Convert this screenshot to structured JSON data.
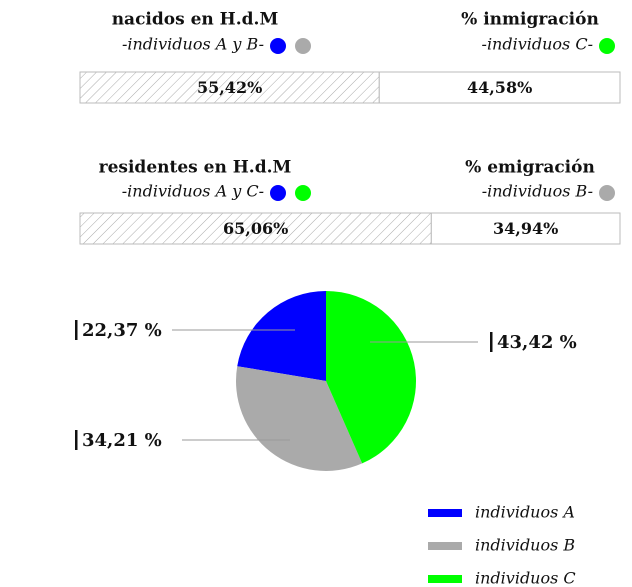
{
  "chart_data": [
    {
      "type": "stacked-bar",
      "xlim": [
        0,
        100
      ],
      "series": [
        {
          "name": "nacidos en H.d.M",
          "subtitle": "-individuos A y B-",
          "dot_colors": [
            "#0000ff",
            "#aaaaaa"
          ],
          "fill": "hatch",
          "values": [
            55.42
          ],
          "value_labels": [
            "55,42%"
          ]
        },
        {
          "name": "% inmigración",
          "subtitle": "-individuos C-",
          "dot_colors": [
            "#00ff00"
          ],
          "fill": "#ffffff",
          "values": [
            44.58
          ],
          "value_labels": [
            "44,58%"
          ]
        }
      ]
    },
    {
      "type": "stacked-bar",
      "xlim": [
        0,
        100
      ],
      "series": [
        {
          "name": "residentes en H.d.M",
          "subtitle": "-individuos A y C-",
          "dot_colors": [
            "#0000ff",
            "#00ff00"
          ],
          "fill": "hatch",
          "values": [
            65.06
          ],
          "value_labels": [
            "65,06%"
          ]
        },
        {
          "name": "% emigración",
          "subtitle": "-individuos B-",
          "dot_colors": [
            "#aaaaaa"
          ],
          "fill": "#ffffff",
          "values": [
            34.94
          ],
          "value_labels": [
            "34,94%"
          ]
        }
      ]
    },
    {
      "type": "pie",
      "legend": "bottom-right",
      "categories": [
        "individuos A",
        "individuos B",
        "individuos C"
      ],
      "values": [
        22.37,
        34.21,
        43.42
      ],
      "value_labels": [
        "22,37 %",
        "34,21 %",
        "43,42 %"
      ],
      "colors": [
        "#0000ff",
        "#aaaaaa",
        "#00ff00"
      ]
    }
  ]
}
